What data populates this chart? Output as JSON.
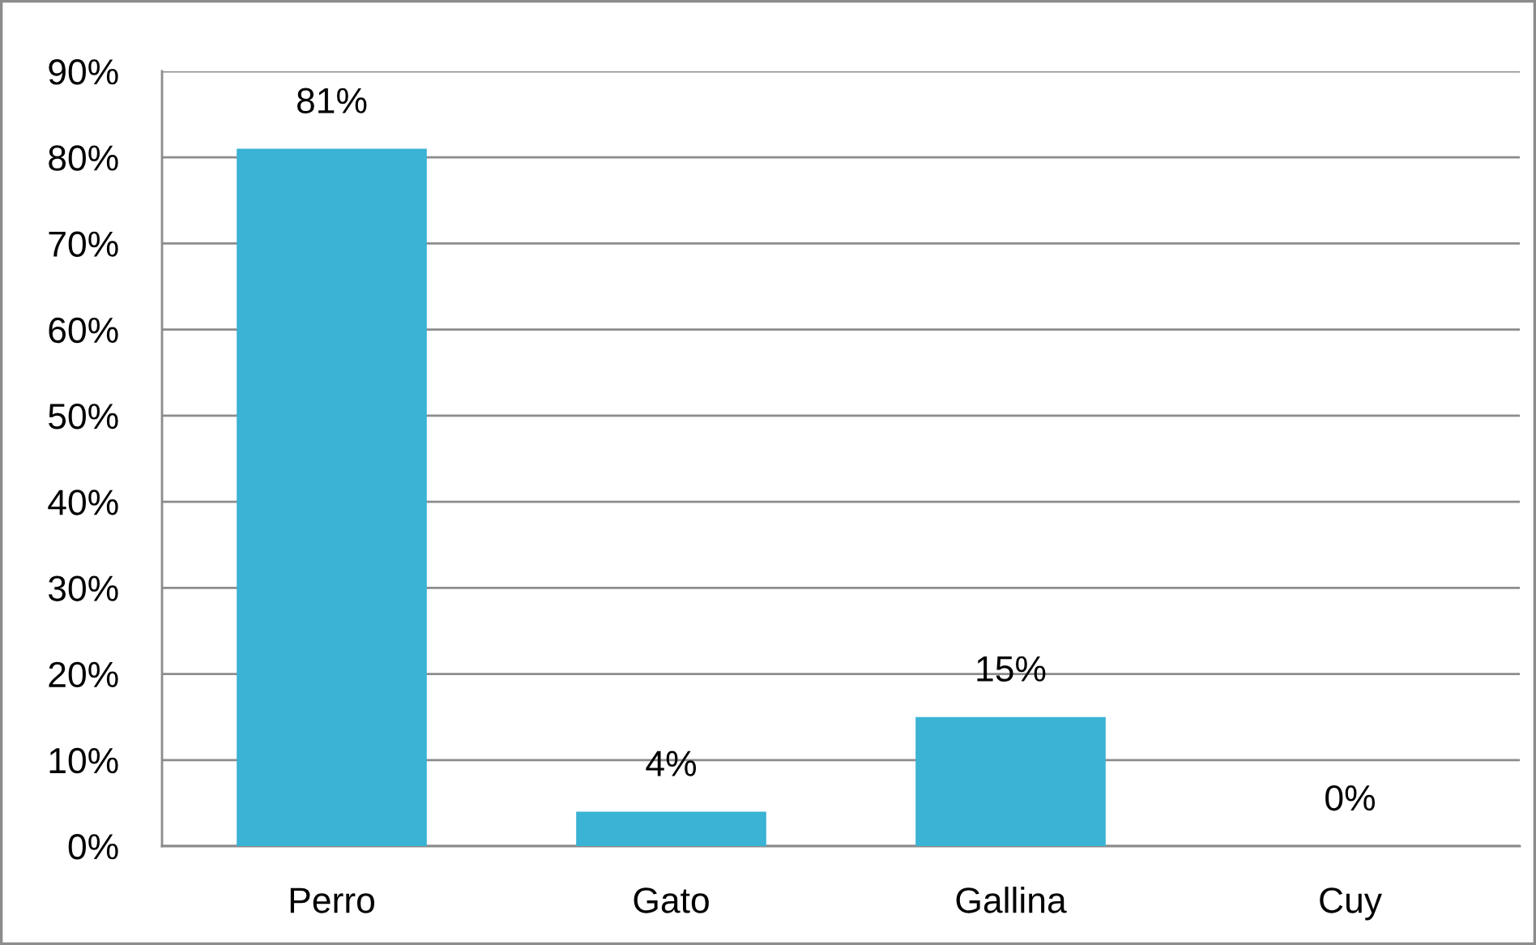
{
  "chart_data": {
    "type": "bar",
    "categories": [
      "Perro",
      "Gato",
      "Gallina",
      "Cuy"
    ],
    "values": [
      81,
      4,
      15,
      0
    ],
    "value_labels": [
      "81%",
      "4%",
      "15%",
      "0%"
    ],
    "color": "#3ab3d4",
    "ylim": [
      0,
      90
    ],
    "yticks": [
      {
        "value": 0,
        "label": "0%"
      },
      {
        "value": 10,
        "label": "10%"
      },
      {
        "value": 20,
        "label": "20%"
      },
      {
        "value": 30,
        "label": "30%"
      },
      {
        "value": 40,
        "label": "40%"
      },
      {
        "value": 50,
        "label": "50%"
      },
      {
        "value": 60,
        "label": "60%"
      },
      {
        "value": 70,
        "label": "70%"
      },
      {
        "value": 80,
        "label": "80%"
      },
      {
        "value": 90,
        "label": "90%"
      }
    ],
    "grid": "y"
  }
}
